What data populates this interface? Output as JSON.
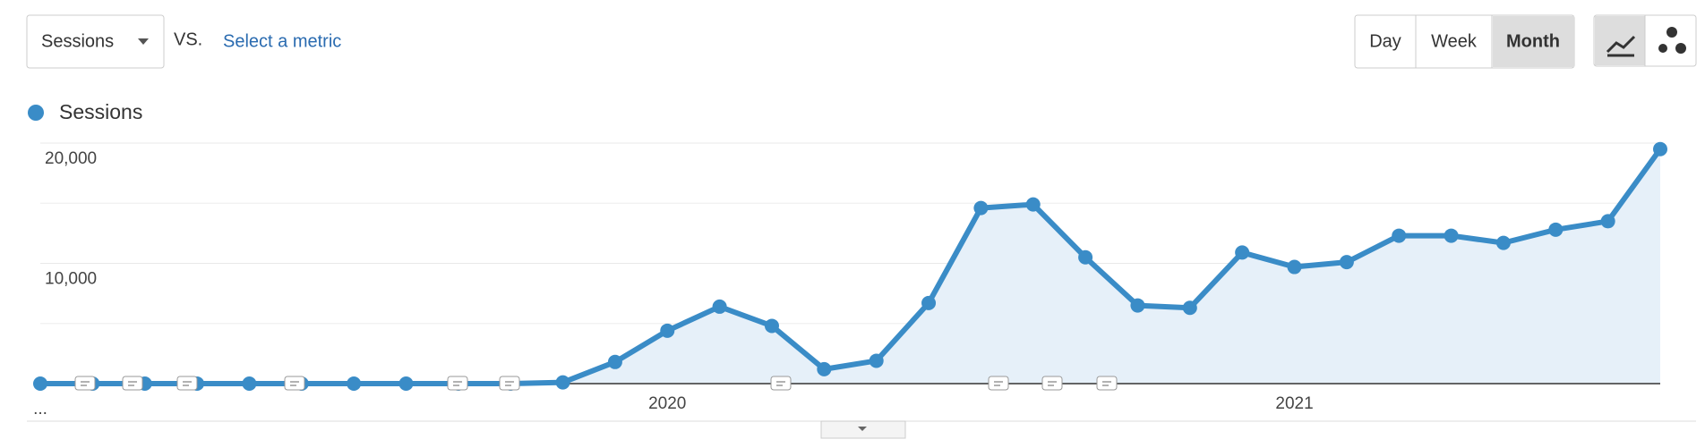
{
  "ui": {
    "metric_dropdown": "Sessions",
    "vs": "VS.",
    "select_metric": "Select a metric",
    "periods": [
      "Day",
      "Week",
      "Month"
    ],
    "active_period": "Month"
  },
  "chart_data": {
    "type": "line",
    "categories": [
      "...",
      null,
      null,
      null,
      null,
      null,
      null,
      null,
      null,
      null,
      null,
      null,
      "2020",
      null,
      null,
      null,
      null,
      null,
      null,
      null,
      null,
      null,
      null,
      null,
      "2021",
      null,
      null,
      null,
      null,
      null,
      null,
      null
    ],
    "series": [
      {
        "name": "Sessions",
        "color": "#3a8cc7",
        "values": [
          0,
          0,
          0,
          0,
          0,
          0,
          0,
          0,
          0,
          0,
          100,
          1800,
          4400,
          6400,
          4800,
          1200,
          1900,
          6700,
          14600,
          14900,
          10500,
          6500,
          6300,
          10900,
          9700,
          10100,
          12300,
          12300,
          11700,
          12800,
          13500,
          19500
        ]
      }
    ],
    "ylim": [
      0,
      20000
    ],
    "yticks": [
      {
        "value": 10000,
        "label": "10,000"
      },
      {
        "value": 20000,
        "label": "20,000"
      }
    ],
    "grid": true,
    "area_fill": "#e6f0f9"
  }
}
